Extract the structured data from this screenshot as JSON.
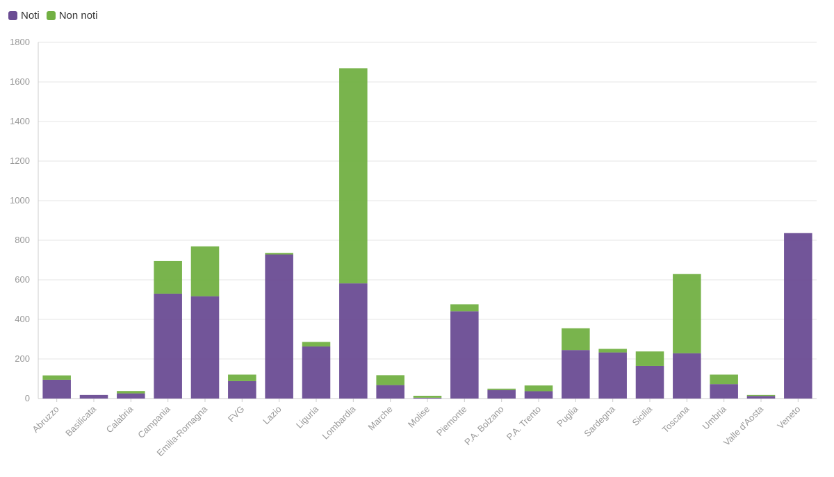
{
  "colors": {
    "noti": "#6a4c93",
    "non_noti": "#72b043",
    "grid": "#e6e6e6",
    "axis": "#cccccc"
  },
  "legend": {
    "noti": "Noti",
    "non_noti": "Non noti"
  },
  "chart_data": {
    "type": "bar",
    "stacked": true,
    "categories": [
      "Abruzzo",
      "Basilicata",
      "Calabria",
      "Campania",
      "Emilia-Romagna",
      "FVG",
      "Lazio",
      "Liguria",
      "Lombardia",
      "Marche",
      "Molise",
      "Piemonte",
      "P.A. Bolzano",
      "P.A. Trento",
      "Puglia",
      "Sardegna",
      "Sicilia",
      "Toscana",
      "Umbria",
      "Valle d'Aosta",
      "Veneto"
    ],
    "series": [
      {
        "name": "Noti",
        "values": [
          95,
          18,
          26,
          530,
          517,
          88,
          728,
          263,
          582,
          68,
          4,
          441,
          43,
          37,
          245,
          233,
          165,
          229,
          73,
          13,
          836
        ]
      },
      {
        "name": "Non noti",
        "values": [
          22,
          0,
          12,
          165,
          252,
          33,
          8,
          23,
          1087,
          50,
          10,
          35,
          7,
          29,
          110,
          18,
          73,
          400,
          48,
          5,
          0
        ]
      }
    ],
    "ylim": [
      0,
      1800
    ],
    "yticks": [
      0,
      200,
      400,
      600,
      800,
      1000,
      1200,
      1400,
      1600,
      1800
    ],
    "grid": true,
    "legend_position": "top-left"
  }
}
